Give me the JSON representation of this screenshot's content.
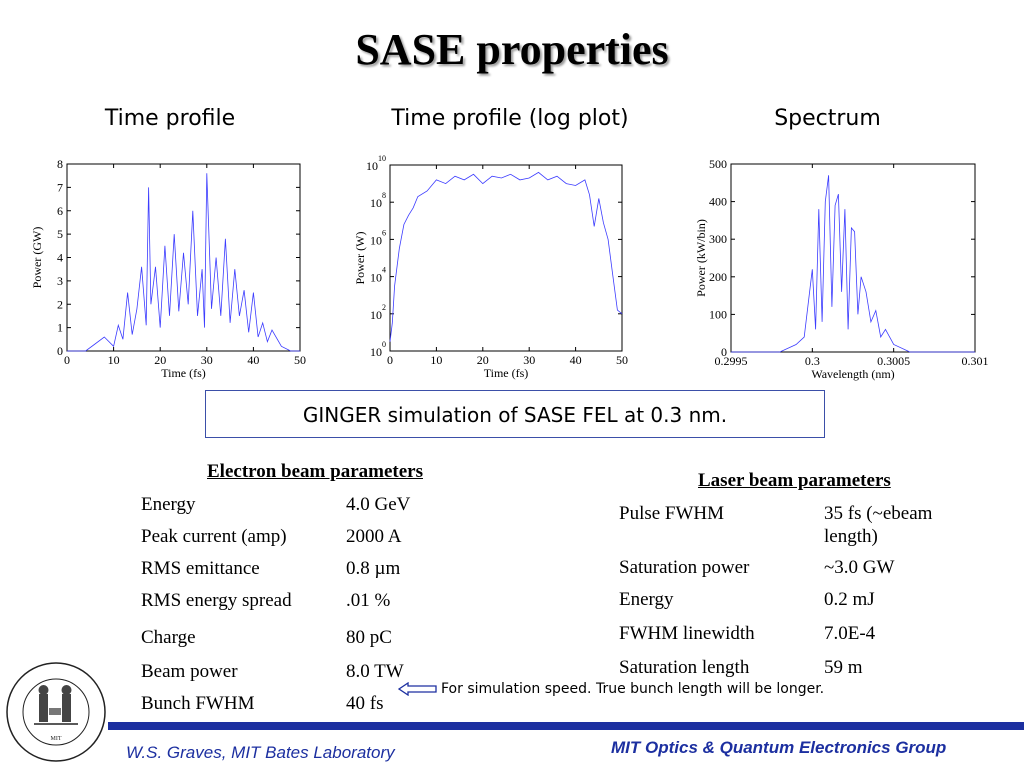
{
  "slide": {
    "title": "SASE properties",
    "panel_titles": [
      "Time profile",
      "Time profile (log plot)",
      "Spectrum"
    ],
    "callout": "GINGER simulation of SASE FEL at 0.3 nm.",
    "electron_table": {
      "heading": "Electron beam parameters",
      "rows": [
        {
          "name": "Energy",
          "value": "4.0 GeV"
        },
        {
          "name": "Peak current (amp)",
          "value": "2000 A"
        },
        {
          "name": "RMS emittance",
          "value": "0.8 µm"
        },
        {
          "name": "RMS energy spread",
          "value": ".01 %"
        },
        {
          "name": "Charge",
          "value": "80 pC"
        },
        {
          "name": "Beam power",
          "value": "8.0 TW"
        },
        {
          "name": "Bunch FWHM",
          "value": "40 fs"
        }
      ]
    },
    "laser_table": {
      "heading": "Laser beam parameters",
      "rows": [
        {
          "name": "Pulse FWHM",
          "value": "35 fs (~ebeam",
          "value2": "length)"
        },
        {
          "name": "Saturation power",
          "value": "~3.0 GW"
        },
        {
          "name": "Energy",
          "value": "0.2 mJ"
        },
        {
          "name": "FWHM linewidth",
          "value": "7.0E-4"
        },
        {
          "name": "Saturation length",
          "value": "59 m"
        }
      ]
    },
    "note": "For simulation speed.  True bunch length will be longer.",
    "footer_left": "W.S. Graves, MIT Bates Laboratory",
    "footer_right": "MIT Optics & Quantum Electronics Group",
    "logo_text": "MASSACHUSETTS INSTITUTE OF TECHNOLOGY",
    "colors": {
      "trace": "#3c3cff",
      "accent": "#1c2fa0",
      "callout_border": "#3b4fa8"
    }
  },
  "chart_data": [
    {
      "type": "line",
      "xlabel": "Time (fs)",
      "ylabel": "Power (GW)",
      "xlim": [
        0,
        50
      ],
      "ylim": [
        0,
        8
      ],
      "xticks": [
        "0",
        "10",
        "20",
        "30",
        "40",
        "50"
      ],
      "yticks": [
        "0",
        "1",
        "2",
        "3",
        "4",
        "5",
        "6",
        "7",
        "8"
      ],
      "series": [
        {
          "x": [
            0,
            4,
            6,
            8,
            10,
            11,
            12,
            13,
            14,
            15,
            16,
            17,
            17.5,
            18,
            19,
            20,
            21,
            22,
            23,
            24,
            25,
            26,
            27,
            28,
            29,
            29.5,
            30,
            31,
            32,
            33,
            34,
            35,
            36,
            37,
            38,
            39,
            40,
            41,
            42,
            43,
            44,
            46,
            48,
            50
          ],
          "y": [
            0,
            0,
            0.3,
            0.6,
            0.2,
            1.1,
            0.5,
            2.5,
            0.7,
            1.8,
            3.6,
            1.1,
            7.0,
            2.0,
            3.6,
            1.0,
            4.5,
            1.5,
            5.0,
            1.7,
            4.2,
            2.0,
            6.0,
            1.5,
            3.5,
            1.0,
            7.6,
            1.8,
            4.0,
            1.5,
            4.8,
            1.2,
            3.5,
            1.5,
            2.6,
            0.8,
            2.5,
            0.6,
            1.2,
            0.4,
            0.9,
            0.2,
            0,
            0
          ]
        }
      ]
    },
    {
      "type": "line",
      "xlabel": "Time (fs)",
      "ylabel": "Power (W)",
      "xlim": [
        0,
        50
      ],
      "ylim": [
        0,
        10
      ],
      "yscale": "log",
      "xticks": [
        "0",
        "10",
        "20",
        "30",
        "40",
        "50"
      ],
      "yticks": [
        "0",
        "2",
        "4",
        "6",
        "8",
        "10"
      ],
      "series": [
        {
          "x": [
            0,
            0.5,
            1,
            2,
            3,
            4,
            5,
            6,
            8,
            10,
            12,
            14,
            16,
            18,
            20,
            22,
            24,
            26,
            28,
            30,
            32,
            34,
            36,
            38,
            40,
            42,
            43,
            44,
            45,
            46,
            47,
            48,
            49,
            50
          ],
          "y": [
            0.5,
            1.5,
            3.5,
            5.5,
            6.8,
            7.3,
            7.7,
            8.3,
            8.6,
            9.2,
            9.0,
            9.4,
            9.2,
            9.5,
            9.0,
            9.4,
            9.3,
            9.5,
            9.2,
            9.3,
            9.6,
            9.2,
            9.4,
            9.0,
            8.9,
            9.2,
            8.4,
            6.7,
            8.2,
            6.9,
            6.0,
            4.1,
            2.2,
            2.0
          ]
        }
      ]
    },
    {
      "type": "line",
      "xlabel": "Wavelength (nm)",
      "ylabel": "Power (kW/bin)",
      "xlim": [
        0.2995,
        0.301
      ],
      "ylim": [
        0,
        500
      ],
      "xticks": [
        "0.2995",
        "0.3",
        "0.3005",
        "0.301"
      ],
      "yticks": [
        "0",
        "100",
        "200",
        "300",
        "400",
        "500"
      ],
      "series": [
        {
          "x": [
            0.2995,
            0.2998,
            0.2999,
            0.29995,
            0.3,
            0.30002,
            0.30004,
            0.30006,
            0.30008,
            0.3001,
            0.30012,
            0.30014,
            0.30016,
            0.30018,
            0.3002,
            0.30022,
            0.30024,
            0.30026,
            0.30028,
            0.3003,
            0.30033,
            0.30036,
            0.30039,
            0.30042,
            0.30045,
            0.3005,
            0.3006,
            0.301
          ],
          "y": [
            0,
            0,
            20,
            40,
            220,
            60,
            380,
            80,
            400,
            470,
            120,
            390,
            420,
            160,
            380,
            60,
            330,
            320,
            100,
            200,
            160,
            80,
            110,
            40,
            60,
            20,
            0,
            0
          ]
        }
      ]
    }
  ]
}
